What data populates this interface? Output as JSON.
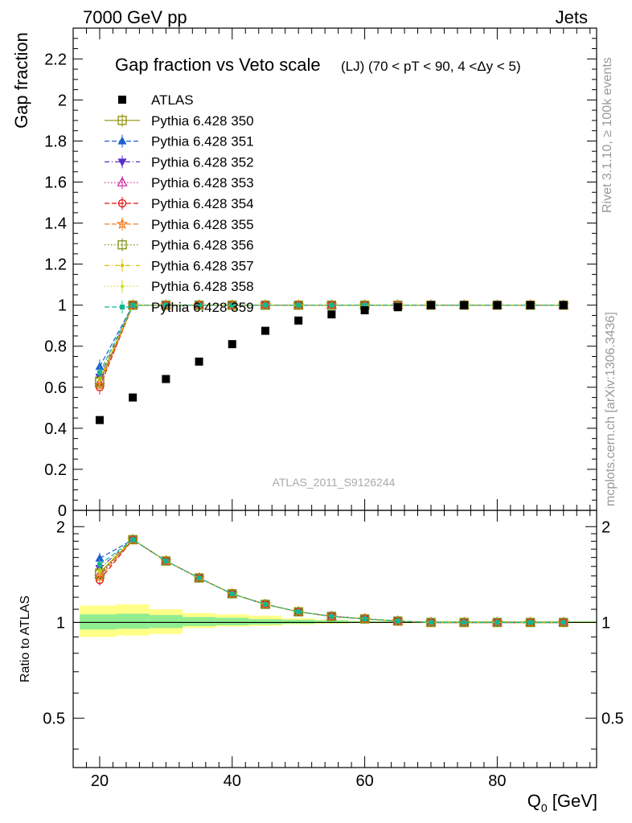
{
  "header": {
    "left": "7000 GeV pp",
    "right": "Jets"
  },
  "side_labels": {
    "rivet": "Rivet 3.1.10, ≥ 100k events",
    "mcplots": "mcplots.cern.ch [arXiv:1306.3436]"
  },
  "watermark": "ATLAS_2011_S9126244",
  "colors": {
    "data": "#000000",
    "band_inner": "#90ee90",
    "band_outer": "#ffff88"
  },
  "chart_data": [
    {
      "type": "scatter",
      "panel": "main",
      "title": "Gap fraction vs Veto scale",
      "subtitle": "(LJ) (70 < pT <  90, 4 <Δy < 5)",
      "ylabel": "Gap fraction",
      "xlim": [
        16,
        95
      ],
      "ylim": [
        0,
        2.35
      ],
      "yticks": [
        0,
        0.2,
        0.4,
        0.6,
        0.8,
        1,
        1.2,
        1.4,
        1.6,
        1.8,
        2,
        2.2
      ],
      "ytick_labels": [
        "0",
        "0.2",
        "0.4",
        "0.6",
        "0.8",
        "1",
        "1.2",
        "1.4",
        "1.6",
        "1.8",
        "2",
        "2.2"
      ],
      "x": [
        20,
        25,
        30,
        35,
        40,
        45,
        50,
        55,
        60,
        65,
        70,
        75,
        80,
        85,
        90
      ],
      "series": [
        {
          "name": "ATLAS",
          "color": "#000000",
          "marker": "filled-square",
          "values": [
            0.44,
            0.55,
            0.64,
            0.725,
            0.81,
            0.875,
            0.925,
            0.955,
            0.975,
            0.99,
            1.0,
            1.0,
            1.0,
            1.0,
            1.0
          ]
        },
        {
          "name": "Pythia 6.428 350",
          "color": "#8f8f00",
          "marker": "open-square",
          "dash": "solid",
          "values": [
            0.63,
            1,
            1,
            1,
            1,
            1,
            1,
            1,
            1,
            1,
            1,
            1,
            1,
            1,
            1
          ]
        },
        {
          "name": "Pythia 6.428 351",
          "color": "#1f5fd0",
          "marker": "filled-triangle-up",
          "dash": "dashed",
          "values": [
            0.7,
            1,
            1,
            1,
            1,
            1,
            1,
            1,
            1,
            1,
            1,
            1,
            1,
            1,
            1
          ]
        },
        {
          "name": "Pythia 6.428 352",
          "color": "#5a2dc8",
          "marker": "filled-triangle-down",
          "dash": "dashdot",
          "values": [
            0.65,
            1,
            1,
            1,
            1,
            1,
            1,
            1,
            1,
            1,
            1,
            1,
            1,
            1,
            1
          ]
        },
        {
          "name": "Pythia 6.428 353",
          "color": "#d0209a",
          "marker": "open-triangle-up",
          "dash": "dotted",
          "values": [
            0.62,
            1,
            1,
            1,
            1,
            1,
            1,
            1,
            1,
            1,
            1,
            1,
            1,
            1,
            1
          ]
        },
        {
          "name": "Pythia 6.428 354",
          "color": "#dd1111",
          "marker": "open-circle",
          "dash": "dashed",
          "values": [
            0.6,
            1,
            1,
            1,
            1,
            1,
            1,
            1,
            1,
            1,
            1,
            1,
            1,
            1,
            1
          ]
        },
        {
          "name": "Pythia 6.428 355",
          "color": "#f07010",
          "marker": "open-star",
          "dash": "dashed",
          "values": [
            0.61,
            1,
            1,
            1,
            1,
            1,
            1,
            1,
            1,
            1,
            1,
            1,
            1,
            1,
            1
          ]
        },
        {
          "name": "Pythia 6.428 356",
          "color": "#7f8f10",
          "marker": "open-square",
          "dash": "dotted",
          "values": [
            0.625,
            1,
            1,
            1,
            1,
            1,
            1,
            1,
            1,
            1,
            1,
            1,
            1,
            1,
            1
          ]
        },
        {
          "name": "Pythia 6.428 357",
          "color": "#d8c000",
          "marker": "small-dot",
          "dash": "dashdot",
          "values": [
            0.635,
            1,
            1,
            1,
            1,
            1,
            1,
            1,
            1,
            1,
            1,
            1,
            1,
            1,
            1
          ]
        },
        {
          "name": "Pythia 6.428 358",
          "color": "#c8dc20",
          "marker": "small-dot",
          "dash": "dotted",
          "values": [
            0.645,
            1,
            1,
            1,
            1,
            1,
            1,
            1,
            1,
            1,
            1,
            1,
            1,
            1,
            1
          ]
        },
        {
          "name": "Pythia 6.428 359",
          "color": "#10b890",
          "marker": "filled-square-small",
          "dash": "dashed",
          "values": [
            0.67,
            1,
            1,
            1,
            1,
            1,
            1,
            1,
            1,
            1,
            1,
            1,
            1,
            1,
            1
          ]
        }
      ]
    },
    {
      "type": "line",
      "panel": "ratio",
      "ylabel": "Ratio to ATLAS",
      "xlabel": "Q",
      "xlabel_sub": "0",
      "xlabel_unit": " [GeV]",
      "xlim": [
        16,
        95
      ],
      "ylim": [
        0.35,
        2.25
      ],
      "xticks": [
        20,
        40,
        60,
        80
      ],
      "xtick_labels": [
        "20",
        "40",
        "60",
        "80"
      ],
      "yticks": [
        0.5,
        1,
        2
      ],
      "ytick_labels": [
        "0.5",
        "1",
        "2"
      ],
      "x": [
        20,
        25,
        30,
        35,
        40,
        45,
        50,
        55,
        60,
        65,
        70,
        75,
        80,
        85,
        90
      ],
      "uncertainty_bands": {
        "edges": [
          17,
          22.5,
          27.5,
          32.5,
          37.5,
          42.5,
          47.5,
          52.5,
          57.5,
          95
        ],
        "inner": [
          [
            0.95,
            1.06
          ],
          [
            0.955,
            1.065
          ],
          [
            0.96,
            1.055
          ],
          [
            0.975,
            1.04
          ],
          [
            0.98,
            1.035
          ],
          [
            0.985,
            1.025
          ],
          [
            0.99,
            1.02
          ],
          [
            0.995,
            1.015
          ],
          [
            0.997,
            1.008
          ]
        ],
        "outer": [
          [
            0.9,
            1.13
          ],
          [
            0.91,
            1.14
          ],
          [
            0.92,
            1.1
          ],
          [
            0.96,
            1.07
          ],
          [
            0.97,
            1.06
          ],
          [
            0.975,
            1.05
          ],
          [
            0.985,
            1.03
          ],
          [
            0.99,
            1.02
          ],
          [
            0.995,
            1.01
          ]
        ]
      },
      "series": [
        {
          "name": "Pythia 6.428 350",
          "values": [
            1.43,
            1.82,
            1.56,
            1.38,
            1.23,
            1.14,
            1.08,
            1.045,
            1.026,
            1.01,
            1,
            1,
            1,
            1,
            1
          ]
        },
        {
          "name": "Pythia 6.428 351",
          "values": [
            1.59,
            1.82,
            1.56,
            1.38,
            1.23,
            1.14,
            1.08,
            1.045,
            1.026,
            1.01,
            1,
            1,
            1,
            1,
            1
          ]
        },
        {
          "name": "Pythia 6.428 352",
          "values": [
            1.48,
            1.82,
            1.56,
            1.38,
            1.23,
            1.14,
            1.08,
            1.045,
            1.026,
            1.01,
            1,
            1,
            1,
            1,
            1
          ]
        },
        {
          "name": "Pythia 6.428 353",
          "values": [
            1.41,
            1.82,
            1.56,
            1.38,
            1.23,
            1.14,
            1.08,
            1.045,
            1.026,
            1.01,
            1,
            1,
            1,
            1,
            1
          ]
        },
        {
          "name": "Pythia 6.428 354",
          "values": [
            1.36,
            1.82,
            1.56,
            1.38,
            1.23,
            1.14,
            1.08,
            1.045,
            1.026,
            1.01,
            1,
            1,
            1,
            1,
            1
          ]
        },
        {
          "name": "Pythia 6.428 355",
          "values": [
            1.39,
            1.82,
            1.56,
            1.38,
            1.23,
            1.14,
            1.08,
            1.045,
            1.026,
            1.01,
            1,
            1,
            1,
            1,
            1
          ]
        },
        {
          "name": "Pythia 6.428 356",
          "values": [
            1.42,
            1.82,
            1.56,
            1.38,
            1.23,
            1.14,
            1.08,
            1.045,
            1.026,
            1.01,
            1,
            1,
            1,
            1,
            1
          ]
        },
        {
          "name": "Pythia 6.428 357",
          "values": [
            1.44,
            1.82,
            1.56,
            1.38,
            1.23,
            1.14,
            1.08,
            1.045,
            1.026,
            1.01,
            1,
            1,
            1,
            1,
            1
          ]
        },
        {
          "name": "Pythia 6.428 358",
          "values": [
            1.47,
            1.82,
            1.56,
            1.38,
            1.23,
            1.14,
            1.08,
            1.045,
            1.026,
            1.01,
            1,
            1,
            1,
            1,
            1
          ]
        },
        {
          "name": "Pythia 6.428 359",
          "values": [
            1.52,
            1.82,
            1.56,
            1.38,
            1.23,
            1.14,
            1.08,
            1.045,
            1.026,
            1.01,
            1,
            1,
            1,
            1,
            1
          ]
        }
      ]
    }
  ]
}
